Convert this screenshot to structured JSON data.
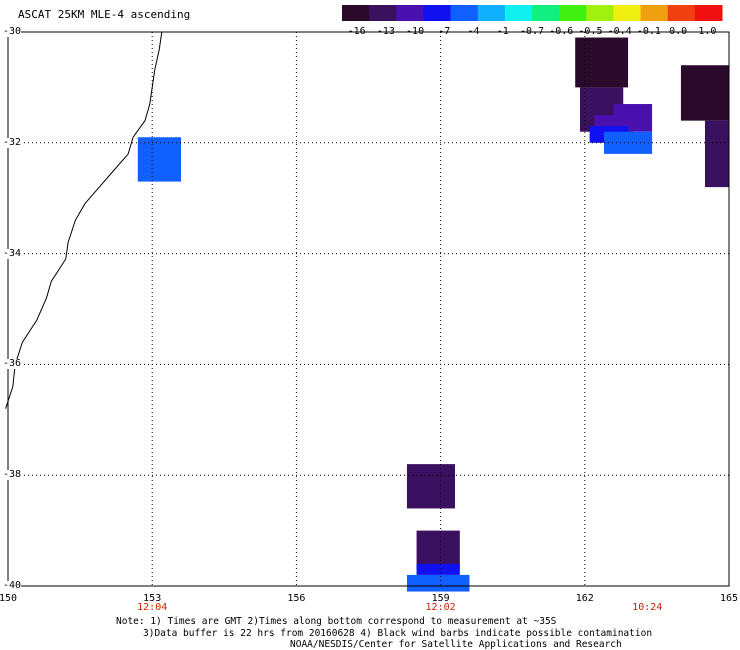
{
  "title": "ASCAT 25KM MLE-4 ascending",
  "colorbar": {
    "labels": [
      "-16",
      "-13",
      "-10",
      "-7",
      "-4",
      "-1",
      "-0.7",
      "-0.6",
      "-0.5",
      "-0.4",
      "-0.1",
      "0.0",
      "1.0"
    ],
    "colors": [
      "#2a0a2a",
      "#3a1060",
      "#4a10b0",
      "#1010f0",
      "#1060ff",
      "#10b0ff",
      "#10f0f0",
      "#10f080",
      "#40f010",
      "#a0f010",
      "#f0f010",
      "#f0a010",
      "#f04010",
      "#f01010"
    ]
  },
  "map": {
    "lat_labels": [
      "-30",
      "-32",
      "-34",
      "-36",
      "-38",
      "-40"
    ],
    "lon_labels": [
      "150",
      "153",
      "156",
      "159",
      "162",
      "165"
    ],
    "time_labels": [
      {
        "lon": 153,
        "text": "12:04"
      },
      {
        "lon": 159,
        "text": "12:02"
      },
      {
        "lon": 163.3,
        "text": "10:24"
      }
    ],
    "cells": [
      {
        "lon0": 152.7,
        "lon1": 153.6,
        "lat0": -31.9,
        "lat1": -32.7,
        "color": "#1060ff"
      },
      {
        "lon0": 161.8,
        "lon1": 162.9,
        "lat0": -30.1,
        "lat1": -31.0,
        "color": "#2a0a2a"
      },
      {
        "lon0": 161.9,
        "lon1": 162.8,
        "lat0": -31.0,
        "lat1": -31.8,
        "color": "#3a1060"
      },
      {
        "lon0": 162.2,
        "lon1": 163.0,
        "lat0": -31.5,
        "lat1": -31.9,
        "color": "#4a10b0"
      },
      {
        "lon0": 162.6,
        "lon1": 163.4,
        "lat0": -31.3,
        "lat1": -31.8,
        "color": "#4a10b0"
      },
      {
        "lon0": 162.1,
        "lon1": 162.9,
        "lat0": -31.7,
        "lat1": -32.0,
        "color": "#1010f0"
      },
      {
        "lon0": 162.4,
        "lon1": 163.4,
        "lat0": -31.8,
        "lat1": -32.2,
        "color": "#1060ff"
      },
      {
        "lon0": 164.0,
        "lon1": 165.0,
        "lat0": -30.6,
        "lat1": -31.6,
        "color": "#2a0a2a"
      },
      {
        "lon0": 164.5,
        "lon1": 165.0,
        "lat0": -31.6,
        "lat1": -32.8,
        "color": "#3a1060"
      },
      {
        "lon0": 158.3,
        "lon1": 159.3,
        "lat0": -37.8,
        "lat1": -38.6,
        "color": "#3a1060"
      },
      {
        "lon0": 158.5,
        "lon1": 159.4,
        "lat0": -39.0,
        "lat1": -39.7,
        "color": "#3a1060"
      },
      {
        "lon0": 158.5,
        "lon1": 159.4,
        "lat0": -39.6,
        "lat1": -39.8,
        "color": "#1010f0"
      },
      {
        "lon0": 158.3,
        "lon1": 159.6,
        "lat0": -39.8,
        "lat1": -40.1,
        "color": "#1060ff"
      }
    ]
  },
  "notes": [
    "Note: 1) Times are GMT 2)Times along bottom correspond to measurement at ~35S",
    "3)Data buffer is 22 hrs from 20160628 4) Black wind barbs indicate possible contamination",
    "NOAA/NESDIS/Center for Satellite Applications and Research"
  ]
}
